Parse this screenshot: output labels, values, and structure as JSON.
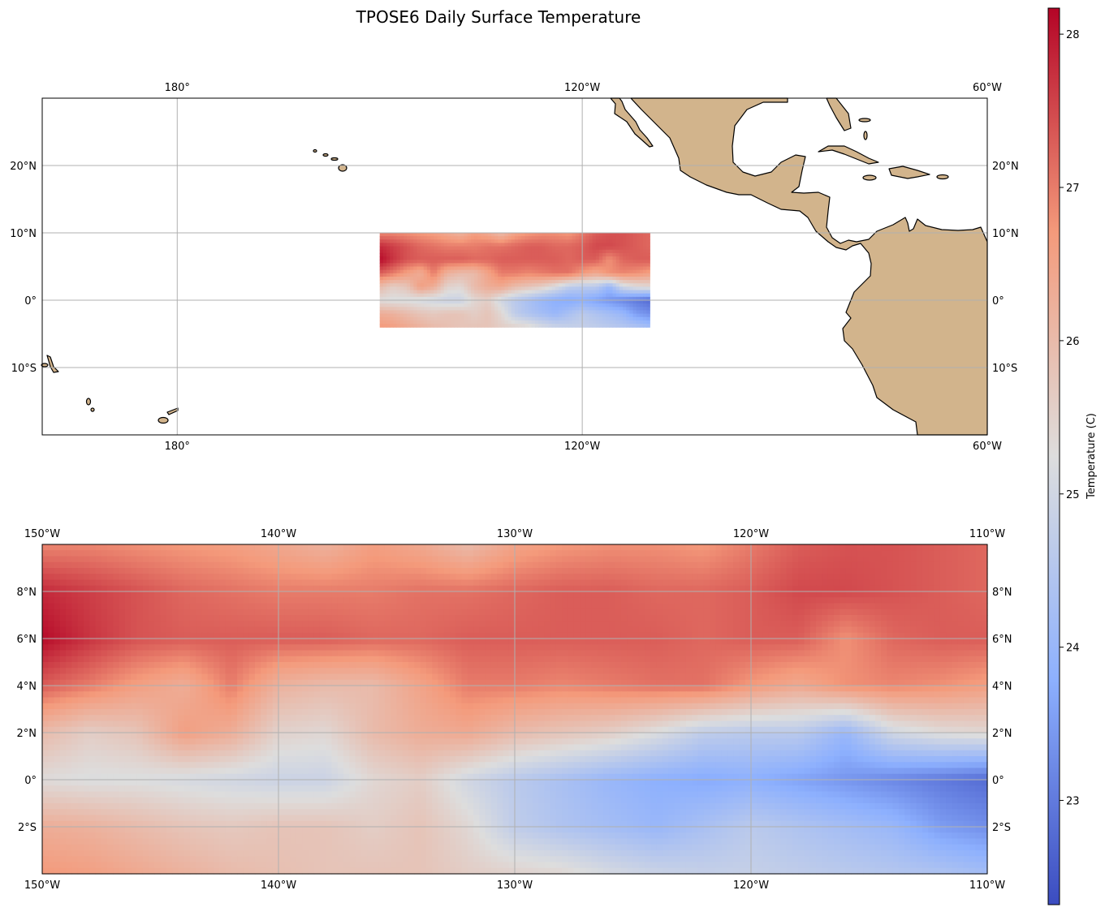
{
  "chart_data": {
    "type": "heatmap",
    "title": "TPOSE6 Daily Surface Temperature",
    "colorbar": {
      "label": "Temperature (C)",
      "ticks": [
        23,
        24,
        25,
        26,
        27,
        28
      ],
      "range": [
        22.32,
        28.17
      ],
      "colormap": "coolwarm"
    },
    "overview_map": {
      "lon_range": [
        -200,
        -60
      ],
      "lat_range": [
        -20,
        30
      ],
      "lon_ticks": [
        {
          "value": -180,
          "label": "180°"
        },
        {
          "value": -120,
          "label": "120°W"
        },
        {
          "value": -60,
          "label": "60°W"
        }
      ],
      "lat_ticks": [
        {
          "value": 20,
          "label": "20°N"
        },
        {
          "value": 10,
          "label": "10°N"
        },
        {
          "value": 0,
          "label": "0°"
        },
        {
          "value": -10,
          "label": "10°S"
        }
      ],
      "land_color": "#d2b48c"
    },
    "detail_map": {
      "lon_range": [
        -150,
        -110
      ],
      "lat_range": [
        -4,
        10
      ],
      "lon_ticks": [
        {
          "value": -150,
          "label": "150°W"
        },
        {
          "value": -140,
          "label": "140°W"
        },
        {
          "value": -130,
          "label": "130°W"
        },
        {
          "value": -120,
          "label": "120°W"
        },
        {
          "value": -110,
          "label": "110°W"
        }
      ],
      "lat_ticks": [
        {
          "value": 8,
          "label": "8°N"
        },
        {
          "value": 6,
          "label": "6°N"
        },
        {
          "value": 4,
          "label": "4°N"
        },
        {
          "value": 2,
          "label": "2°N"
        },
        {
          "value": 0,
          "label": "0°"
        },
        {
          "value": -2,
          "label": "2°S"
        }
      ]
    },
    "field": {
      "lons": [
        -150,
        -148,
        -146,
        -144,
        -142,
        -140,
        -138,
        -136,
        -134,
        -132,
        -130,
        -128,
        -126,
        -124,
        -122,
        -120,
        -118,
        -116,
        -114,
        -112,
        -110
      ],
      "lats": [
        10,
        8,
        6,
        4,
        2,
        0,
        -2,
        -4
      ],
      "values": [
        [
          26.9,
          26.9,
          26.8,
          26.7,
          26.6,
          26.4,
          26.2,
          26.6,
          26.4,
          26.0,
          26.5,
          26.7,
          26.8,
          26.8,
          26.7,
          27.0,
          27.3,
          27.4,
          27.4,
          27.3,
          27.2
        ],
        [
          27.8,
          27.6,
          27.4,
          27.2,
          27.1,
          27.0,
          27.0,
          27.0,
          27.1,
          27.1,
          27.2,
          27.3,
          27.3,
          27.2,
          27.2,
          27.3,
          27.5,
          27.5,
          27.4,
          27.3,
          27.2
        ],
        [
          28.1,
          27.7,
          27.4,
          27.3,
          27.3,
          27.3,
          27.3,
          27.2,
          27.2,
          27.3,
          27.3,
          27.3,
          27.3,
          27.3,
          27.2,
          27.3,
          27.3,
          26.8,
          27.2,
          27.3,
          27.3
        ],
        [
          27.3,
          27.0,
          26.6,
          26.3,
          27.0,
          26.2,
          26.0,
          26.0,
          26.5,
          27.0,
          27.0,
          26.9,
          27.0,
          27.1,
          27.1,
          26.7,
          26.4,
          26.8,
          26.9,
          26.8,
          26.6
        ],
        [
          26.0,
          25.6,
          25.8,
          26.6,
          26.3,
          25.5,
          25.4,
          26.0,
          26.3,
          26.4,
          26.0,
          25.8,
          25.6,
          25.2,
          24.7,
          24.6,
          24.6,
          24.0,
          25.0,
          25.3,
          25.4
        ],
        [
          25.3,
          25.2,
          25.2,
          25.1,
          25.0,
          24.9,
          24.9,
          25.4,
          25.6,
          25.0,
          24.6,
          24.3,
          24.0,
          23.8,
          23.7,
          23.8,
          23.6,
          23.4,
          23.2,
          23.0,
          22.8
        ],
        [
          26.3,
          26.2,
          26.0,
          25.8,
          25.7,
          25.8,
          25.8,
          25.6,
          25.8,
          25.4,
          24.7,
          24.4,
          24.2,
          24.0,
          24.3,
          24.6,
          24.4,
          24.2,
          24.0,
          23.5,
          23.3
        ],
        [
          26.7,
          26.6,
          26.4,
          26.2,
          26.0,
          25.9,
          25.8,
          25.8,
          25.8,
          25.6,
          25.5,
          25.4,
          25.1,
          24.9,
          24.8,
          24.8,
          24.7,
          24.6,
          24.5,
          24.4,
          24.2
        ]
      ]
    }
  }
}
